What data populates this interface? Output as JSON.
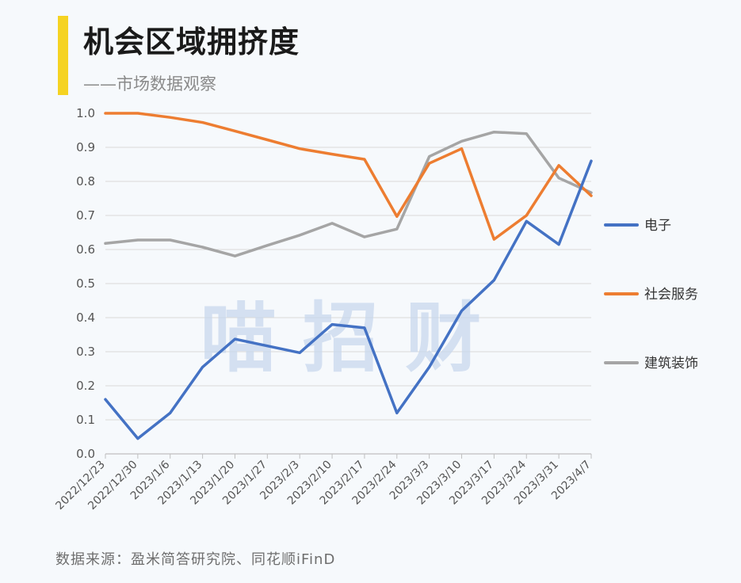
{
  "header": {
    "title": "机会区域拥挤度",
    "subtitle": "——市场数据观察"
  },
  "watermark": "喵 招 财",
  "source": "数据来源：盈米简答研究院、同花顺iFinD",
  "chart_data": {
    "type": "line",
    "title": "机会区域拥挤度",
    "xlabel": "",
    "ylabel": "",
    "ylim": [
      0,
      1.0
    ],
    "yticks": [
      "0.0",
      "0.1",
      "0.2",
      "0.3",
      "0.4",
      "0.5",
      "0.6",
      "0.7",
      "0.8",
      "0.9",
      "1.0"
    ],
    "grid": true,
    "legend_position": "right",
    "categories": [
      "2022/12/23",
      "2022/12/30",
      "2023/1/6",
      "2023/1/13",
      "2023/1/20",
      "2023/1/27",
      "2023/2/3",
      "2023/2/10",
      "2023/2/17",
      "2023/2/24",
      "2023/3/3",
      "2023/3/10",
      "2023/3/17",
      "2023/3/24",
      "2023/3/31",
      "2023/4/7"
    ],
    "series": [
      {
        "name": "电子",
        "color": "#4472c4",
        "values": [
          0.16,
          0.045,
          0.12,
          0.255,
          0.337,
          0.317,
          0.297,
          0.38,
          0.37,
          0.12,
          0.255,
          0.42,
          0.51,
          0.683,
          0.615,
          0.86
        ]
      },
      {
        "name": "社会服务",
        "color": "#ed7d31",
        "values": [
          1.0,
          1.0,
          0.988,
          0.973,
          0.948,
          0.922,
          0.896,
          0.88,
          0.865,
          0.697,
          0.853,
          0.896,
          0.63,
          0.7,
          0.847,
          0.758
        ]
      },
      {
        "name": "建筑装饰",
        "color": "#a5a5a5",
        "values": [
          0.618,
          0.628,
          0.628,
          0.607,
          0.581,
          0.612,
          0.642,
          0.677,
          0.637,
          0.66,
          0.873,
          0.918,
          0.945,
          0.94,
          0.81,
          0.767
        ]
      }
    ]
  }
}
